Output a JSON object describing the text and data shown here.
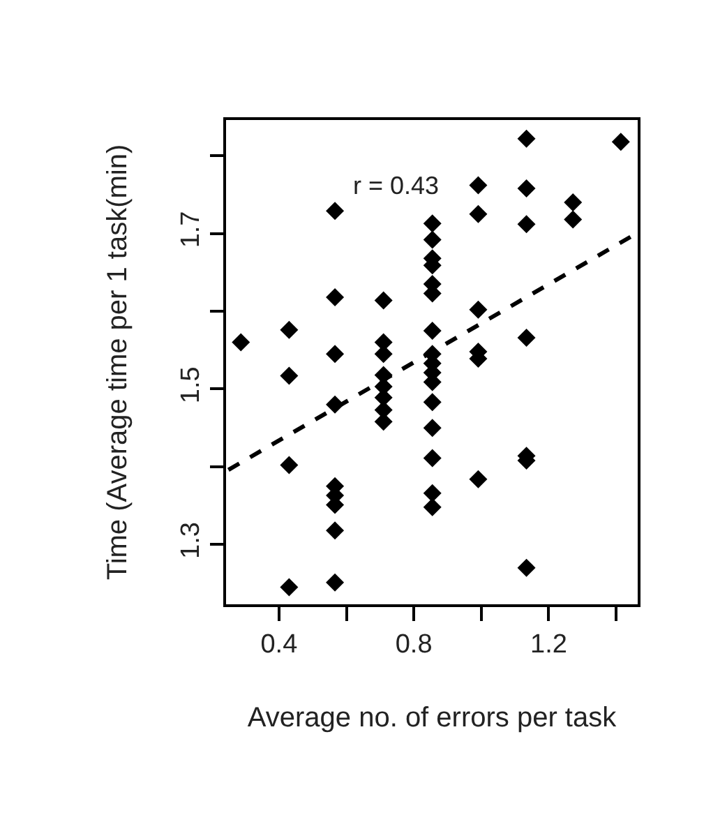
{
  "chart_data": {
    "type": "scatter",
    "xlabel": "Average no. of errors per task",
    "ylabel": "Time (Average time per 1 task(min)",
    "annotations": [
      "r = 0.43"
    ],
    "xlim": [
      0.243,
      1.464
    ],
    "ylim": [
      1.223,
      1.846
    ],
    "xticks": [
      0.4,
      {
        "value": 0.6,
        "label": null
      },
      0.8,
      {
        "value": 1.0,
        "label": null
      },
      1.2,
      {
        "value": 1.4,
        "label": null
      }
    ],
    "yticks": [
      1.3,
      {
        "value": 1.4,
        "label": null
      },
      1.5,
      {
        "value": 1.6,
        "label": null
      },
      1.7,
      {
        "value": 1.8,
        "label": null
      }
    ],
    "marker": "diamond",
    "series": [
      {
        "color": "#000000",
        "x": [
          0.287,
          0.43,
          0.43,
          0.43,
          0.43,
          0.566,
          0.566,
          0.566,
          0.566,
          0.566,
          0.566,
          0.566,
          0.566,
          0.566,
          0.71,
          0.71,
          0.71,
          0.71,
          0.71,
          0.71,
          0.71,
          0.71,
          0.855,
          0.855,
          0.855,
          0.855,
          0.855,
          0.855,
          0.855,
          0.855,
          0.855,
          0.855,
          0.855,
          0.855,
          0.855,
          0.855,
          0.855,
          0.855,
          0.991,
          0.991,
          0.991,
          0.991,
          0.991,
          0.991,
          1.134,
          1.134,
          1.134,
          1.134,
          1.134,
          1.134,
          1.134,
          1.272,
          1.272,
          1.414
        ],
        "values": [
          1.56,
          1.576,
          1.517,
          1.402,
          1.245,
          1.729,
          1.618,
          1.545,
          1.48,
          1.375,
          1.363,
          1.351,
          1.318,
          1.251,
          1.614,
          1.56,
          1.545,
          1.518,
          1.503,
          1.489,
          1.473,
          1.458,
          1.713,
          1.692,
          1.668,
          1.659,
          1.635,
          1.623,
          1.575,
          1.545,
          1.533,
          1.521,
          1.509,
          1.483,
          1.45,
          1.411,
          1.366,
          1.348,
          1.762,
          1.725,
          1.602,
          1.548,
          1.539,
          1.384,
          1.822,
          1.758,
          1.712,
          1.566,
          1.414,
          1.408,
          1.27,
          1.74,
          1.718,
          1.818
        ]
      },
      {
        "type": "line",
        "line_style": "dashed",
        "marker": "none",
        "color": "#000000",
        "x": [
          0.25,
          1.46
        ],
        "values": [
          1.396,
          1.7
        ]
      }
    ]
  }
}
